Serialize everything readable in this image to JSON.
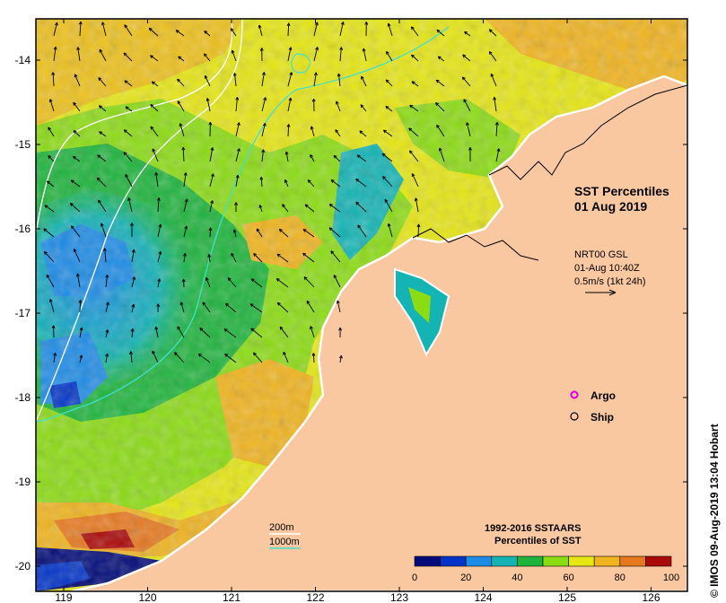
{
  "map": {
    "title_line1": "SST Percentiles",
    "title_line2": "01 Aug 2019",
    "currents_source": "NRT00 GSL",
    "currents_time": "01-Aug 10:40Z",
    "current_scale": "0.5m/s (1kt 24h)",
    "x_ticks": [
      "119",
      "120",
      "121",
      "122",
      "123",
      "124",
      "125",
      "126"
    ],
    "y_ticks": [
      "-14",
      "-15",
      "-16",
      "-17",
      "-18",
      "-19",
      "-20"
    ],
    "copyright": "© IMOS 09-Aug-2019 13:04 Hobart"
  },
  "legend": {
    "argo_label": "Argo",
    "ship_label": "Ship",
    "isobath_200": "200m",
    "isobath_1000": "1000m",
    "colorbar_title1": "1992-2016 SSTAARS",
    "colorbar_title2": "Percentiles of SST",
    "colorbar_ticks": [
      "0",
      "20",
      "40",
      "60",
      "80",
      "100"
    ],
    "colorbar_colors": [
      "#000a78",
      "#0033c8",
      "#1e8ce6",
      "#14b4b4",
      "#1eb43c",
      "#8cdc14",
      "#e6e614",
      "#f0b41e",
      "#e6781e",
      "#aa0a0a"
    ]
  },
  "colors": {
    "land": "#fac8a0",
    "isobath_200": "#ffffff",
    "isobath_1000": "#40e0d0",
    "argo": "#dd00dd"
  }
}
